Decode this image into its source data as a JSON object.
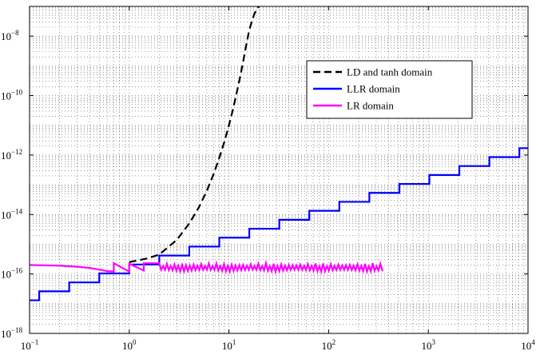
{
  "chart_data": {
    "type": "line",
    "title": "",
    "xlabel": "",
    "ylabel": "",
    "x_scale": "log",
    "y_scale": "log",
    "xlim": [
      0.1,
      10000
    ],
    "ylim": [
      1e-18,
      1e-07
    ],
    "grid": true,
    "legend_position": "top-right",
    "x_ticks": [
      {
        "value": 0.1,
        "base": "10",
        "exp": "−1"
      },
      {
        "value": 1,
        "base": "10",
        "exp": "0"
      },
      {
        "value": 10,
        "base": "10",
        "exp": "1"
      },
      {
        "value": 100,
        "base": "10",
        "exp": "2"
      },
      {
        "value": 1000,
        "base": "10",
        "exp": "3"
      },
      {
        "value": 10000,
        "base": "10",
        "exp": "4"
      }
    ],
    "y_ticks": [
      {
        "value": 1e-18,
        "base": "10",
        "exp": "−18"
      },
      {
        "value": 1e-16,
        "base": "10",
        "exp": "−16"
      },
      {
        "value": 1e-14,
        "base": "10",
        "exp": "−14"
      },
      {
        "value": 1e-12,
        "base": "10",
        "exp": "−12"
      },
      {
        "value": 1e-10,
        "base": "10",
        "exp": "−10"
      },
      {
        "value": 1e-08,
        "base": "10",
        "exp": "−8"
      }
    ],
    "series": [
      {
        "name": "LD and tanh domain",
        "color": "#000000",
        "style": "dashed",
        "x": [
          1.0,
          1.5,
          2.0,
          3.0,
          4.0,
          5.0,
          6.0,
          7.0,
          8.0,
          9.0,
          10.0,
          11.0,
          12.0,
          13.0,
          14.0,
          15.0,
          16.0,
          17.0,
          18.0,
          19.0,
          20.0,
          21.0
        ],
        "y": [
          2.5e-16,
          3.3e-16,
          4.5e-16,
          1.4e-15,
          5e-15,
          1.75e-14,
          6.3e-14,
          2.24e-13,
          8e-13,
          2.8e-12,
          1e-11,
          3.55e-11,
          1.3e-10,
          4.5e-10,
          1.6e-09,
          5.6e-09,
          1.6e-08,
          3.2e-08,
          5.6e-08,
          8e-08,
          1e-07,
          1.2e-07
        ]
      },
      {
        "name": "LLR domain",
        "color": "#0000ff",
        "style": "solid",
        "staircase_start_x": 0.125,
        "staircase_ratio": 2,
        "x": [
          0.1,
          0.125,
          0.25,
          0.5,
          1,
          2,
          4,
          8,
          16,
          32,
          64,
          128,
          256,
          512,
          1024,
          2048,
          4096,
          8192,
          10000
        ],
        "y": [
          1.3e-17,
          2.6e-17,
          5e-17,
          1e-16,
          2e-16,
          4e-16,
          8e-16,
          1.6e-15,
          3.2e-15,
          6.4e-15,
          1.3e-14,
          2.6e-14,
          5e-14,
          1e-13,
          2e-13,
          4e-13,
          8e-13,
          1.6e-12,
          1.6e-12
        ]
      },
      {
        "name": "LR domain",
        "color": "#ff00ff",
        "style": "solid",
        "x": [
          0.1,
          0.2,
          0.3,
          0.4,
          0.5,
          0.6,
          0.7,
          0.7,
          1.0,
          1.0,
          1.4,
          1.4,
          2.0,
          350
        ],
        "y": [
          2e-16,
          1.9e-16,
          1.75e-16,
          1.6e-16,
          1.4e-16,
          1.25e-16,
          1.2e-16,
          2.3e-16,
          1.2e-16,
          2.2e-16,
          1.3e-16,
          2.3e-16,
          1.5e-16,
          1.5e-16
        ],
        "oscillation_range": [
          1.2e-16,
          2.3e-16
        ]
      }
    ]
  }
}
